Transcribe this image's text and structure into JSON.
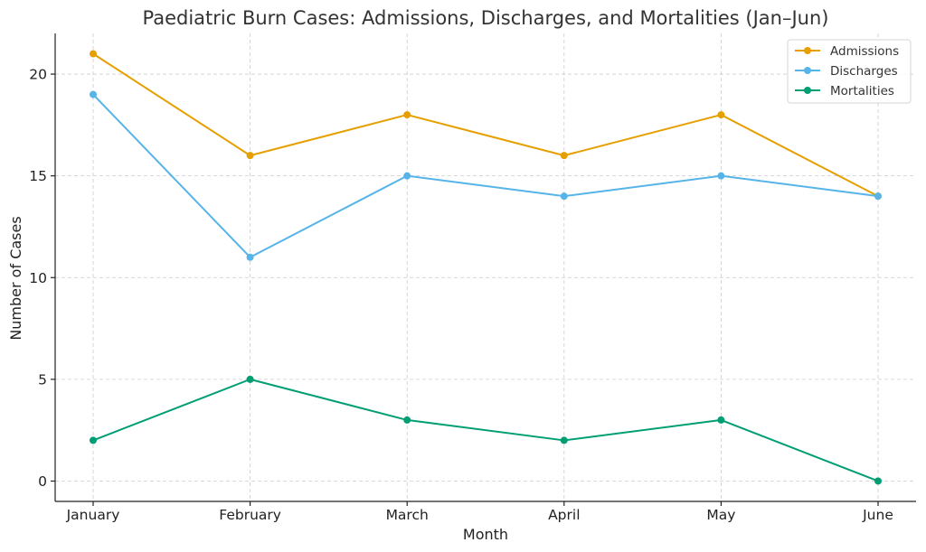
{
  "chart_data": {
    "type": "line",
    "title": "Paediatric Burn Cases: Admissions, Discharges, and Mortalities (Jan–Jun)",
    "xlabel": "Month",
    "ylabel": "Number of Cases",
    "categories": [
      "January",
      "February",
      "March",
      "April",
      "May",
      "June"
    ],
    "series": [
      {
        "name": "Admissions",
        "values": [
          21,
          16,
          18,
          16,
          18,
          14
        ],
        "color": "#E69F00"
      },
      {
        "name": "Discharges",
        "values": [
          19,
          11,
          15,
          14,
          15,
          14
        ],
        "color": "#56B4E9"
      },
      {
        "name": "Mortalities",
        "values": [
          2,
          5,
          3,
          2,
          3,
          0
        ],
        "color": "#009E73"
      }
    ],
    "ylim": [
      -1,
      22
    ],
    "yticks": [
      0,
      5,
      10,
      15,
      20
    ],
    "grid": true,
    "legend_position": "top-right"
  }
}
